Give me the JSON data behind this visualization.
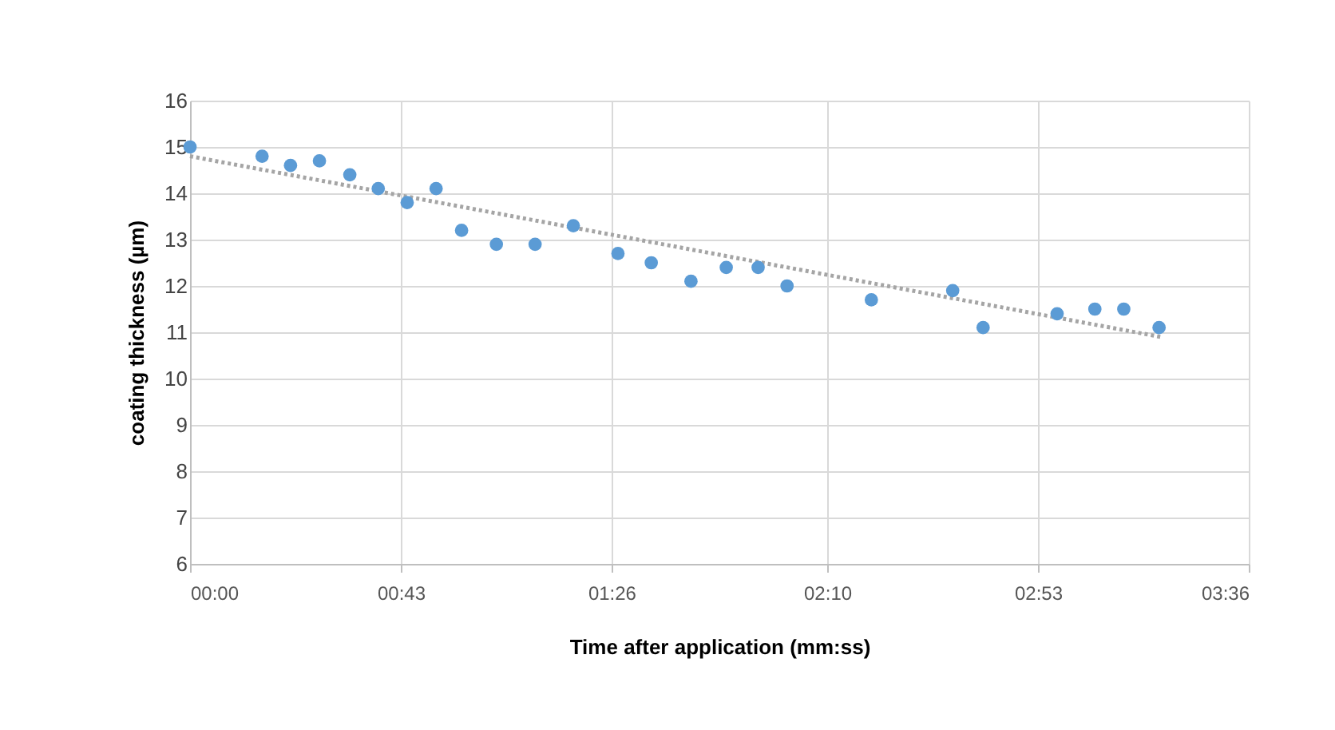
{
  "chart_data": {
    "type": "scatter",
    "xlabel": "Time after application (mm:ss)",
    "ylabel": "coating thickness (µm)",
    "xlim": [
      0,
      216
    ],
    "xticks": [
      {
        "value": 0,
        "label": "00:00"
      },
      {
        "value": 43,
        "label": "00:43"
      },
      {
        "value": 86,
        "label": "01:26"
      },
      {
        "value": 130,
        "label": "02:10"
      },
      {
        "value": 173,
        "label": "02:53"
      },
      {
        "value": 216,
        "label": "03:36"
      }
    ],
    "ylim": [
      6,
      16
    ],
    "yticks": [
      6,
      7,
      8,
      9,
      10,
      11,
      12,
      13,
      14,
      15,
      16
    ],
    "grid": true,
    "series": [
      {
        "marker": "circle",
        "color": "#5b9bd5",
        "x": [
          0,
          14.7,
          20.5,
          26.4,
          32.6,
          38.4,
          44.3,
          50.2,
          55.4,
          62.5,
          70.4,
          78.2,
          87.3,
          94.1,
          102.2,
          109.4,
          115.9,
          121.8,
          139,
          155.6,
          161.8,
          176.9,
          184.6,
          190.5,
          197.7
        ],
        "values": [
          15.0,
          14.8,
          14.6,
          14.7,
          14.4,
          14.1,
          13.8,
          14.1,
          13.2,
          12.9,
          12.9,
          13.3,
          12.7,
          12.5,
          12.1,
          12.4,
          12.4,
          12.0,
          11.7,
          11.9,
          11.1,
          11.4,
          11.5,
          11.5,
          11.1
        ]
      },
      {
        "type": "line",
        "marker": "none",
        "color": "#a5a5a5",
        "line_style": "dotted",
        "x": [
          0,
          198
        ],
        "values": [
          14.8,
          10.9
        ]
      }
    ]
  }
}
